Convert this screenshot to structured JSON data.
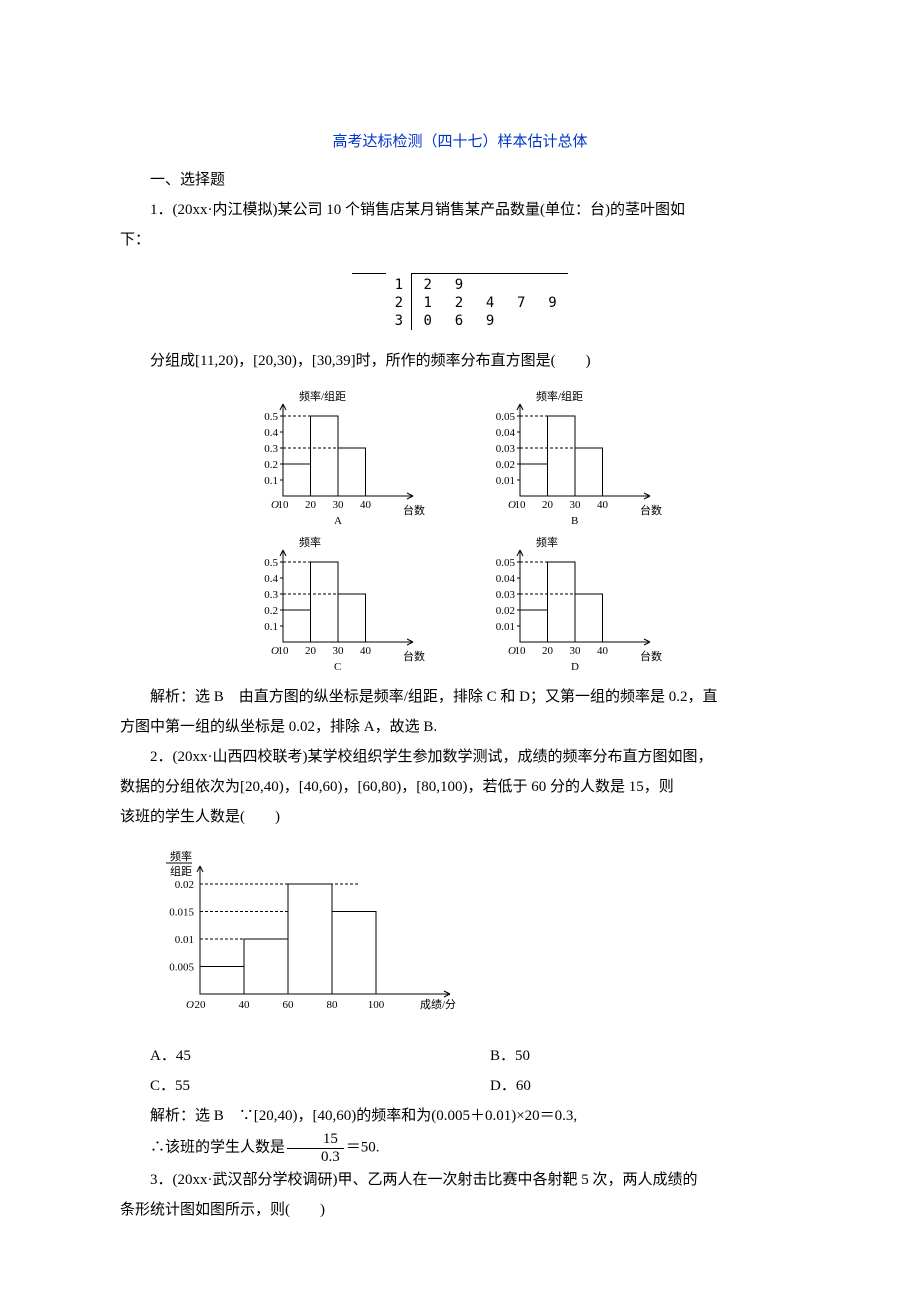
{
  "title": "高考达标检测（四十七）样本估计总体",
  "section_heading": "一、选择题",
  "q1": {
    "stem_a": "1．(20xx·内江模拟)某公司 10 个销售店某月销售某产品数量(单位：台)的茎叶图如",
    "stem_b": "下：",
    "stem_leaf": {
      "stems": [
        "1",
        "2",
        "3"
      ],
      "leaves": [
        [
          "2",
          "9",
          "",
          "",
          ""
        ],
        [
          "1",
          "2",
          "4",
          "7",
          "9"
        ],
        [
          "0",
          "6",
          "9",
          "",
          ""
        ]
      ]
    },
    "after_leaf": "分组成[11,20)，[20,30)，[30,39]时，所作的频率分布直方图是(　　)",
    "charts": {
      "A": {
        "ytitle": "频率/组距",
        "yticks": [
          "0.1",
          "0.2",
          "0.3",
          "0.4",
          "0.5"
        ],
        "bars": [
          0.2,
          0.5,
          0.3
        ],
        "xticks": [
          "10",
          "20",
          "30",
          "40"
        ],
        "xlabel": "台数",
        "tag": "A"
      },
      "B": {
        "ytitle": "频率/组距",
        "yticks": [
          "0.01",
          "0.02",
          "0.03",
          "0.04",
          "0.05"
        ],
        "bars": [
          0.02,
          0.05,
          0.03
        ],
        "xticks": [
          "10",
          "20",
          "30",
          "40"
        ],
        "xlabel": "台数",
        "tag": "B"
      },
      "C": {
        "ytitle": "频率",
        "yticks": [
          "0.1",
          "0.2",
          "0.3",
          "0.4",
          "0.5"
        ],
        "bars": [
          0.2,
          0.5,
          0.3
        ],
        "xticks": [
          "10",
          "20",
          "30",
          "40"
        ],
        "xlabel": "台数",
        "tag": "C"
      },
      "D": {
        "ytitle": "频率",
        "yticks": [
          "0.01",
          "0.02",
          "0.03",
          "0.04",
          "0.05"
        ],
        "bars": [
          0.02,
          0.05,
          0.03
        ],
        "xticks": [
          "10",
          "20",
          "30",
          "40"
        ],
        "xlabel": "台数",
        "tag": "D"
      }
    },
    "expl_a": "解析：选 B　由直方图的纵坐标是频率/组距，排除 C 和 D；又第一组的频率是 0.2，直",
    "expl_b": "方图中第一组的纵坐标是 0.02，排除 A，故选 B."
  },
  "q2": {
    "stem_a": "2．(20xx·山西四校联考)某学校组织学生参加数学测试，成绩的频率分布直方图如图，",
    "stem_b": "数据的分组依次为[20,40)，[40,60)，[60,80)，[80,100)，若低于 60 分的人数是 15，则",
    "stem_c": "该班的学生人数是(　　)",
    "hist": {
      "ytitle_l1": "频率",
      "ytitle_l2": "组距",
      "yticks": [
        "0.005",
        "0.01",
        "0.015",
        "0.02"
      ],
      "bars": [
        0.005,
        0.01,
        0.02,
        0.015
      ],
      "xticks": [
        "20",
        "40",
        "60",
        "80",
        "100"
      ],
      "xlabel": "成绩/分"
    },
    "optA": "A．45",
    "optB": "B．50",
    "optC": "C．55",
    "optD": "D．60",
    "expl1": "解析：选 B　∵[20,40)，[40,60)的频率和为(0.005＋0.01)×20＝0.3,",
    "expl2_pre": "∴该班的学生人数是",
    "frac_num": "15",
    "frac_den": "0.3",
    "expl2_post": "＝50."
  },
  "q3": {
    "stem_a": "3．(20xx·武汉部分学校调研)甲、乙两人在一次射击比赛中各射靶 5 次，两人成绩的",
    "stem_b": "条形统计图如图所示，则(　　)"
  }
}
